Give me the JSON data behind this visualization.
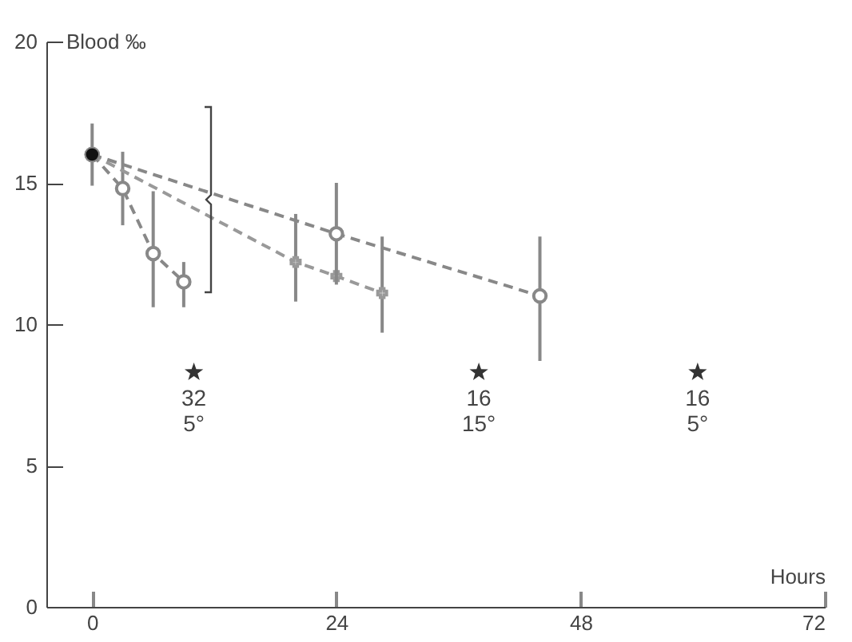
{
  "chart_data": {
    "type": "line",
    "xlabel": "Hours",
    "ylabel": "Blood ‰",
    "xlim": [
      -4.5,
      72
    ],
    "xticks": [
      0,
      24,
      48,
      72
    ],
    "ylim": [
      0,
      20
    ],
    "yticks": [
      0,
      5,
      10,
      15,
      20
    ],
    "grid": false,
    "line_style": "dashed",
    "series": [
      {
        "color": "#888888",
        "marker": "circle",
        "x": [
          0,
          3,
          6,
          9
        ],
        "values": [
          16,
          14.8,
          12.5,
          11.5
        ],
        "errors": [
          null,
          [
            13.5,
            16.1
          ],
          [
            10.6,
            14.7
          ],
          [
            10.6,
            12.2
          ]
        ]
      },
      {
        "color": "#999999",
        "marker": "cross",
        "x": [
          0,
          20,
          24,
          28.5
        ],
        "values": [
          16,
          12.2,
          11.7,
          11.1
        ],
        "errors": [
          null,
          [
            10.8,
            13.9
          ],
          null,
          [
            9.7,
            13.1
          ]
        ]
      },
      {
        "color": "#888888",
        "marker": "circle",
        "x": [
          0,
          24,
          44
        ],
        "values": [
          16,
          13.2,
          11.0
        ],
        "errors": [
          null,
          [
            11.4,
            15.0
          ],
          [
            8.7,
            13.1
          ]
        ]
      },
      {
        "type": "scatter",
        "color": "#111111",
        "marker": "circle",
        "x": [
          0
        ],
        "values": [
          16
        ],
        "errors": [
          [
            14.9,
            17.1
          ]
        ]
      },
      {
        "type": "scatter",
        "color": "#333333",
        "marker": "star",
        "x": [
          10,
          38,
          59.5
        ],
        "values": [
          8.3,
          8.3,
          8.3
        ]
      }
    ],
    "annotations": [
      {
        "text": "32\n5°",
        "x": 10,
        "y": 8.3
      },
      {
        "text": "16\n15°",
        "x": 38,
        "y": 8.3
      },
      {
        "text": "16\n5°",
        "x": 59.5,
        "y": 8.3
      }
    ]
  }
}
